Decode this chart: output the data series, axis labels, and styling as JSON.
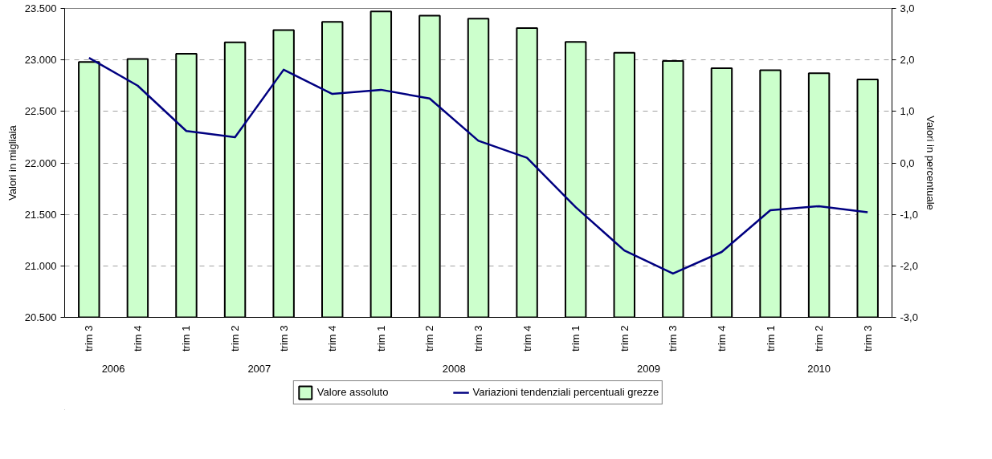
{
  "chart_data": {
    "type": "bar",
    "ylabel": "Valori in migliaia",
    "y2label": "Valori in percentuale",
    "categories": [
      "trim 3",
      "trim 4",
      "trim 1",
      "trim 2",
      "trim 3",
      "trim 4",
      "trim 1",
      "trim 2",
      "trim 3",
      "trim 4",
      "trim 1",
      "trim 2",
      "trim 3",
      "trim 4",
      "trim 1",
      "trim 2",
      "trim 3"
    ],
    "annotations": [
      "2006",
      "2007",
      "2008",
      "2009",
      "2010"
    ],
    "series": [
      {
        "name": "Valore assoluto",
        "color": "#ccffcc",
        "values": [
          22980,
          23010,
          23060,
          23170,
          23290,
          23370,
          23470,
          23430,
          23400,
          23310,
          23175,
          23070,
          22990,
          22920,
          22900,
          22870,
          22810
        ]
      },
      {
        "name": "Variazioni tendenziali percentuali grezze",
        "type": "line",
        "axis": "y2",
        "color": "#000080",
        "values": [
          2.04,
          1.5,
          0.62,
          0.5,
          1.81,
          1.34,
          1.42,
          1.25,
          0.43,
          0.1,
          -0.86,
          -1.7,
          -2.15,
          -1.73,
          -0.92,
          -0.84,
          -0.96
        ]
      }
    ],
    "ylim": [
      20500,
      23500
    ],
    "yticks": [
      {
        "value": 20500,
        "label": "20.500"
      },
      {
        "value": 21000,
        "label": "21.000"
      },
      {
        "value": 21500,
        "label": "21.500"
      },
      {
        "value": 22000,
        "label": "22.000"
      },
      {
        "value": 22500,
        "label": "22.500"
      },
      {
        "value": 23000,
        "label": "23.000"
      },
      {
        "value": 23500,
        "label": "23.500"
      }
    ],
    "y2lim": [
      -3,
      3
    ],
    "y2ticks": [
      {
        "value": -3,
        "label": "-3,0"
      },
      {
        "value": -2,
        "label": "-2,0"
      },
      {
        "value": -1,
        "label": "-1,0"
      },
      {
        "value": 0,
        "label": "0,0"
      },
      {
        "value": 1,
        "label": "1,0"
      },
      {
        "value": 2,
        "label": "2,0"
      },
      {
        "value": 3,
        "label": "3,0"
      }
    ],
    "grid": "y",
    "legend": "bottom",
    "line_style": "solid",
    "marker": "none"
  }
}
